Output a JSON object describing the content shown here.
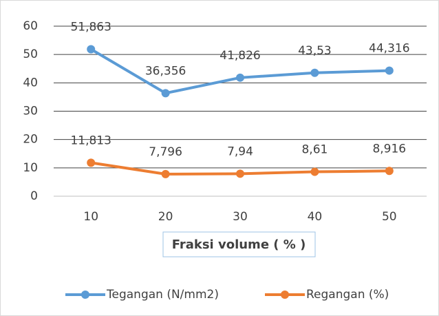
{
  "chart_data": {
    "type": "line",
    "categories": [
      "10",
      "20",
      "30",
      "40",
      "50"
    ],
    "x_label": "Fraksi volume ( % )",
    "series": [
      {
        "name": "Tegangan (N/mm2)",
        "color": "#5b9bd5",
        "values": [
          51.863,
          36.356,
          41.826,
          43.53,
          44.316
        ],
        "value_labels": [
          "51,863",
          "36,356",
          "41,826",
          "43,53",
          "44,316"
        ]
      },
      {
        "name": "Regangan (%)",
        "color": "#ed7d31",
        "values": [
          11.813,
          7.796,
          7.94,
          8.61,
          8.916
        ],
        "value_labels": [
          "11,813",
          "7,796",
          "7,94",
          "8,61",
          "8,916"
        ]
      }
    ],
    "ylim": [
      0,
      60
    ],
    "yticks": [
      0,
      10,
      20,
      30,
      40,
      50,
      60
    ],
    "grid": true,
    "legend": "bottom"
  }
}
